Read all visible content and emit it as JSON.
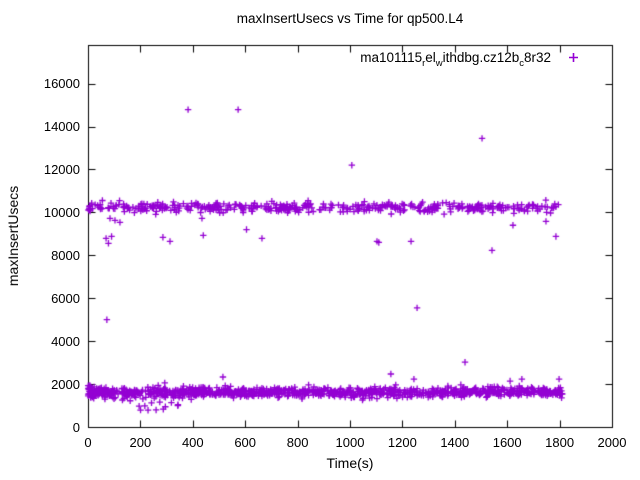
{
  "title": "maxInsertUsecs vs Time for qp500.L4",
  "legend": {
    "parts": [
      {
        "text": "ma101115",
        "subscript": false
      },
      {
        "text": "r",
        "subscript": true
      },
      {
        "text": "el",
        "subscript": false
      },
      {
        "text": "w",
        "subscript": true
      },
      {
        "text": "ithdbg.cz12b",
        "subscript": false
      },
      {
        "text": "c",
        "subscript": true
      },
      {
        "text": "8r32",
        "subscript": false
      }
    ],
    "marker": "plus",
    "color": "#9400d3",
    "position": "top-right-inside"
  },
  "chart_data": {
    "type": "scatter",
    "title": "maxInsertUsecs vs Time for qp500.L4",
    "xlabel": "Time(s)",
    "ylabel": "maxInsertUsecs",
    "xlim": [
      0,
      2000
    ],
    "ylim": [
      0,
      17800
    ],
    "xticks": [
      0,
      200,
      400,
      600,
      800,
      1000,
      1200,
      1400,
      1600,
      1800,
      2000
    ],
    "yticks": [
      0,
      2000,
      4000,
      6000,
      8000,
      10000,
      12000,
      14000,
      16000
    ],
    "grid": false,
    "frame_color": "#000000",
    "background": "#ffffff",
    "series": [
      {
        "name": "ma101115_rel_withdbg.cz12b_8r32",
        "marker": "plus",
        "color": "#9400d3"
      }
    ],
    "bands": [
      {
        "name": "upper-band",
        "t_min": 4,
        "t_max": 1808,
        "count": 430,
        "dist": "gaussian",
        "mean": 10230,
        "sd": 120,
        "v_min": 9850,
        "v_max": 10780
      },
      {
        "name": "lower-band",
        "t_min": 3,
        "t_max": 1810,
        "count": 1050,
        "dist": "gaussian",
        "mean": 1610,
        "sd": 115,
        "v_min": 1180,
        "v_max": 2060
      },
      {
        "name": "lower-left-edge-cluster",
        "t_min": 0,
        "t_max": 14,
        "count": 22,
        "dist": "uniform",
        "v_min": 1350,
        "v_max": 1980
      },
      {
        "name": "upper-left-edge-cluster",
        "t_min": 2,
        "t_max": 12,
        "count": 8,
        "dist": "uniform",
        "v_min": 10050,
        "v_max": 10430
      },
      {
        "name": "lower-dip-cluster",
        "t_min": 175,
        "t_max": 345,
        "count": 12,
        "dist": "uniform",
        "v_min": 780,
        "v_max": 1160
      }
    ],
    "outliers": [
      [
        382,
        14790
      ],
      [
        573,
        14790
      ],
      [
        1007,
        12200
      ],
      [
        1504,
        13450
      ],
      [
        69,
        8790
      ],
      [
        78,
        8560
      ],
      [
        84,
        9720
      ],
      [
        90,
        8880
      ],
      [
        103,
        9630
      ],
      [
        122,
        9535
      ],
      [
        286,
        8840
      ],
      [
        313,
        8650
      ],
      [
        435,
        9720
      ],
      [
        440,
        8930
      ],
      [
        605,
        9200
      ],
      [
        664,
        8790
      ],
      [
        1103,
        8650
      ],
      [
        1110,
        8600
      ],
      [
        1233,
        8650
      ],
      [
        1542,
        8230
      ],
      [
        1622,
        9400
      ],
      [
        1748,
        9580
      ],
      [
        1786,
        8880
      ],
      [
        72,
        5000
      ],
      [
        515,
        2330
      ],
      [
        1156,
        2470
      ],
      [
        1244,
        2230
      ],
      [
        1256,
        5550
      ],
      [
        1439,
        3020
      ],
      [
        1611,
        2140
      ],
      [
        1656,
        2230
      ],
      [
        1798,
        2230
      ]
    ]
  }
}
